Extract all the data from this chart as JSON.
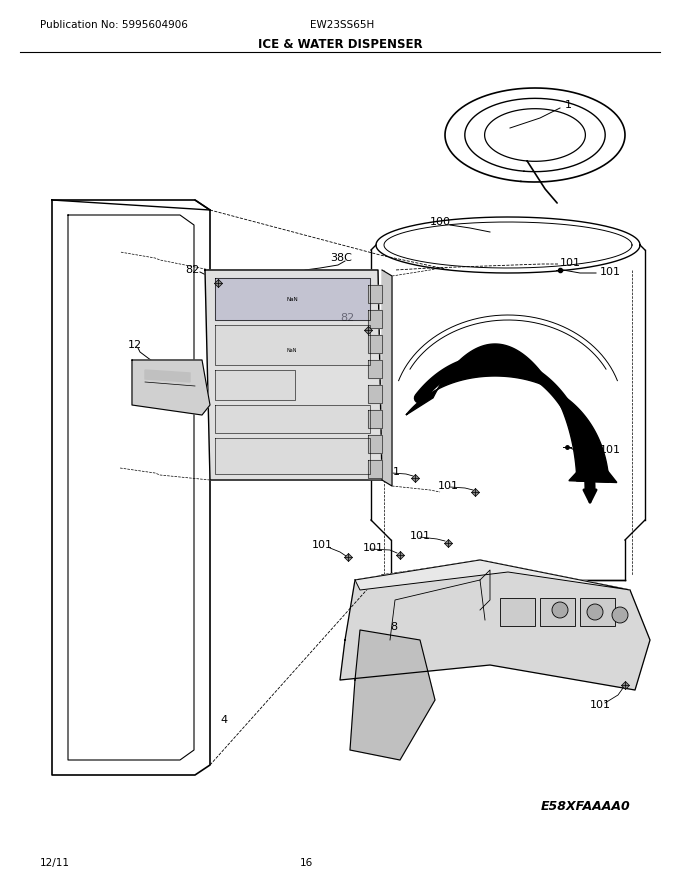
{
  "publication_no": "Publication No: 5995604906",
  "model": "EW23SS65H",
  "title": "ICE & WATER DISPENSER",
  "date": "12/11",
  "page": "16",
  "diagram_id": "E58XFAAAA0",
  "bg_color": "#ffffff",
  "line_color": "#000000",
  "header_fontsize": 7.5,
  "title_fontsize": 8.5,
  "footer_fontsize": 7.5,
  "label_fontsize": 8,
  "small_label_fontsize": 7
}
